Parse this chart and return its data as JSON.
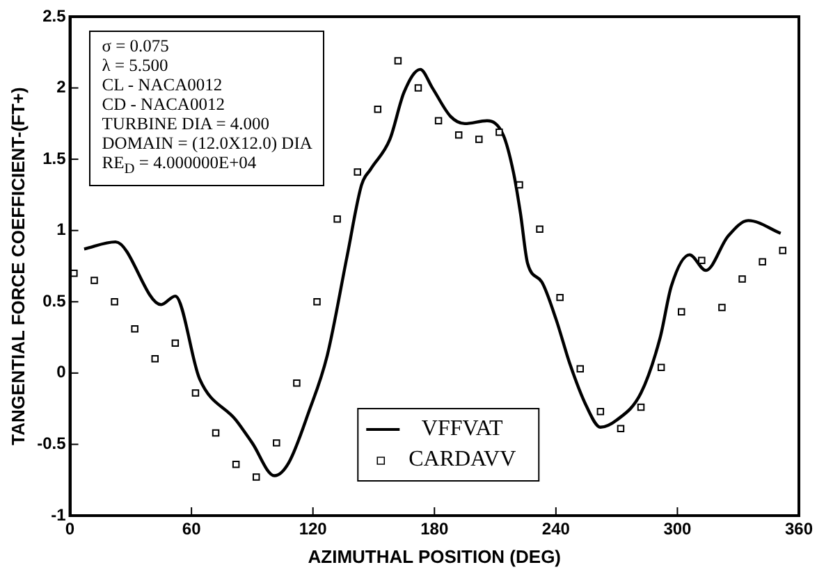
{
  "chart_data": {
    "type": "line",
    "xlabel": "AZIMUTHAL POSITION (DEG)",
    "ylabel": "TANGENTIAL FORCE COEFFICIENT-(FT+)",
    "xlim": [
      0,
      360
    ],
    "xticks": [
      0,
      60,
      120,
      180,
      240,
      300,
      360
    ],
    "ylim": [
      -1,
      2.5
    ],
    "yticks": [
      -1,
      -0.5,
      0,
      0.5,
      1,
      1.5,
      2,
      2.5
    ],
    "grid": false,
    "legend": "bottom",
    "annotations": [
      "σ = 0.075",
      "λ = 5.500",
      "CL - NACA0012",
      "CD - NACA0012",
      "TURBINE DIA = 4.000",
      "DOMAIN = (12.0X12.0) DIA",
      "RE$_{D}$ = 4.000000E+04"
    ],
    "series": [
      {
        "name": "VFFVAT",
        "color": "#000000",
        "marker": "none",
        "line_style": "solid",
        "x": [
          7,
          22.5,
          45,
          52,
          64,
          82,
          90,
          101,
          108,
          118,
          127,
          137,
          144,
          148.5,
          158,
          165,
          173,
          179,
          188,
          195,
          206,
          214,
          219,
          222.5,
          226,
          233,
          240,
          247,
          255,
          262,
          270,
          282,
          291.5,
          297,
          306,
          314,
          325,
          335,
          351
        ],
        "values": [
          0.87,
          0.92,
          0.48,
          0.54,
          -0.04,
          -0.33,
          -0.49,
          -0.72,
          -0.63,
          -0.27,
          0.12,
          0.83,
          1.32,
          1.43,
          1.64,
          1.97,
          2.13,
          2.0,
          1.8,
          1.75,
          1.77,
          1.67,
          1.41,
          1.12,
          0.77,
          0.64,
          0.38,
          0.06,
          -0.23,
          -0.38,
          -0.33,
          -0.14,
          0.25,
          0.61,
          0.83,
          0.72,
          0.96,
          1.07,
          0.98
        ]
      },
      {
        "name": "CARDAVV",
        "type": "scatter",
        "color": "#000000",
        "marker": "square",
        "x": [
          2,
          12,
          22,
          32,
          42,
          52,
          62,
          72,
          82,
          92,
          102,
          112,
          122,
          132,
          142,
          152,
          162,
          172,
          182,
          192,
          202,
          212,
          222,
          232,
          242,
          252,
          262,
          272,
          282,
          292,
          302,
          312,
          322,
          332,
          342,
          352
        ],
        "values": [
          0.7,
          0.65,
          0.5,
          0.31,
          0.1,
          0.21,
          -0.14,
          -0.42,
          -0.64,
          -0.73,
          -0.49,
          -0.07,
          0.5,
          1.08,
          1.41,
          1.85,
          2.19,
          2.0,
          1.77,
          1.67,
          1.64,
          1.69,
          1.32,
          1.01,
          0.53,
          0.03,
          -0.27,
          -0.39,
          -0.24,
          0.04,
          0.43,
          0.79,
          0.46,
          0.66,
          0.78,
          0.86
        ]
      }
    ]
  }
}
